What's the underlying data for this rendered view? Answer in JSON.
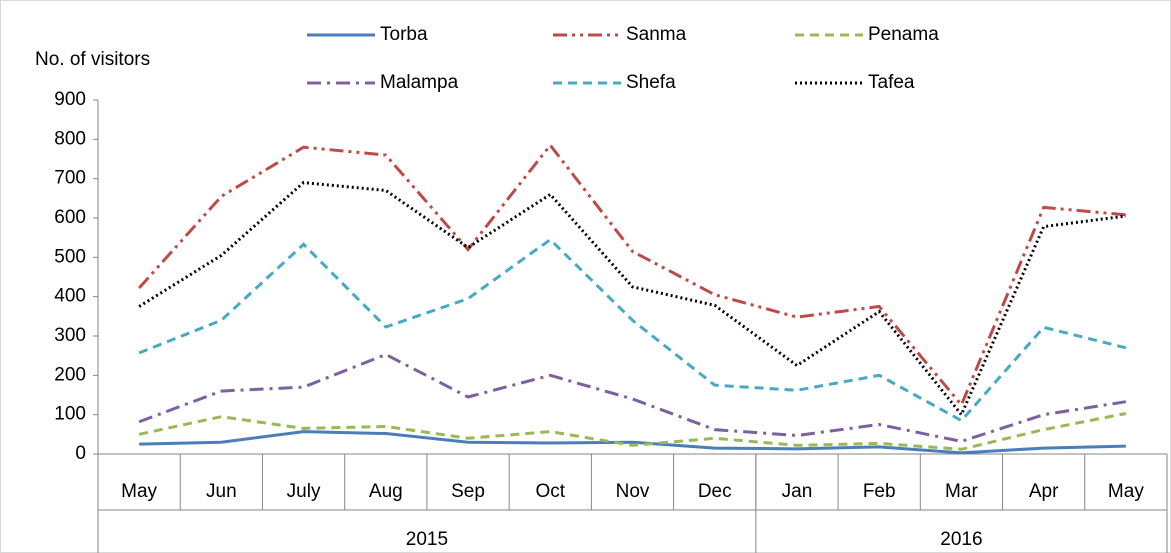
{
  "chart_data": {
    "type": "line",
    "y_label": "No. of visitors",
    "categories": [
      "May",
      "Jun",
      "July",
      "Aug",
      "Sep",
      "Oct",
      "Nov",
      "Dec",
      "Jan",
      "Feb",
      "Mar",
      "Apr",
      "May"
    ],
    "category_groups": [
      {
        "label": "2015",
        "count": 8
      },
      {
        "label": "2016",
        "count": 5
      }
    ],
    "ylim": [
      0,
      900
    ],
    "yticks": [
      0,
      100,
      200,
      300,
      400,
      500,
      600,
      700,
      800,
      900
    ],
    "legend": "top",
    "series": [
      {
        "name": "Torba",
        "color": "#4a7ebb",
        "style": "solid",
        "values": [
          25,
          30,
          57,
          52,
          30,
          28,
          30,
          15,
          13,
          18,
          3,
          15,
          20
        ]
      },
      {
        "name": "Sanma",
        "color": "#be4b48",
        "style": "dash-dot-dot",
        "values": [
          422,
          655,
          780,
          760,
          520,
          785,
          515,
          405,
          348,
          375,
          125,
          627,
          608
        ]
      },
      {
        "name": "Penama",
        "color": "#98b954",
        "style": "dash",
        "values": [
          50,
          95,
          65,
          70,
          40,
          57,
          22,
          40,
          22,
          27,
          12,
          62,
          103
        ]
      },
      {
        "name": "Malampa",
        "color": "#7d60a0",
        "style": "dash-dot",
        "values": [
          82,
          160,
          170,
          253,
          145,
          200,
          140,
          62,
          47,
          75,
          32,
          100,
          133
        ]
      },
      {
        "name": "Shefa",
        "color": "#46aac5",
        "style": "dash",
        "values": [
          257,
          340,
          533,
          323,
          395,
          545,
          340,
          175,
          162,
          200,
          85,
          322,
          270
        ]
      },
      {
        "name": "Tafea",
        "color": "#000000",
        "style": "dot",
        "values": [
          375,
          505,
          690,
          670,
          525,
          660,
          425,
          378,
          225,
          362,
          100,
          578,
          605
        ]
      }
    ]
  }
}
